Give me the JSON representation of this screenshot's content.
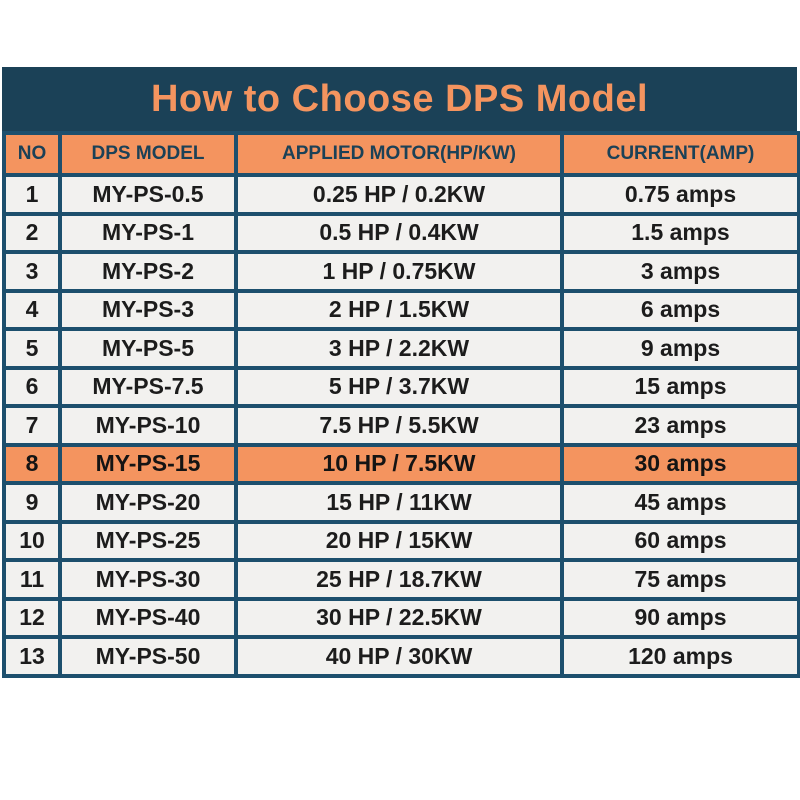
{
  "title": "How to Choose DPS Model",
  "chart_data": {
    "type": "table",
    "title": "How to Choose DPS Model",
    "columns": [
      "NO",
      "DPS MODEL",
      "APPLIED MOTOR(HP/KW)",
      "CURRENT(AMP)"
    ],
    "rows": [
      [
        "1",
        "MY-PS-0.5",
        "0.25 HP / 0.2KW",
        "0.75 amps"
      ],
      [
        "2",
        "MY-PS-1",
        "0.5 HP / 0.4KW",
        "1.5 amps"
      ],
      [
        "3",
        "MY-PS-2",
        "1 HP / 0.75KW",
        "3 amps"
      ],
      [
        "4",
        "MY-PS-3",
        "2 HP / 1.5KW",
        "6 amps"
      ],
      [
        "5",
        "MY-PS-5",
        "3 HP / 2.2KW",
        "9 amps"
      ],
      [
        "6",
        "MY-PS-7.5",
        "5 HP / 3.7KW",
        "15 amps"
      ],
      [
        "7",
        "MY-PS-10",
        "7.5 HP / 5.5KW",
        "23 amps"
      ],
      [
        "8",
        "MY-PS-15",
        "10 HP / 7.5KW",
        "30 amps"
      ],
      [
        "9",
        "MY-PS-20",
        "15 HP / 11KW",
        "45 amps"
      ],
      [
        "10",
        "MY-PS-25",
        "20 HP / 15KW",
        "60 amps"
      ],
      [
        "11",
        "MY-PS-30",
        "25 HP / 18.7KW",
        "75 amps"
      ],
      [
        "12",
        "MY-PS-40",
        "30 HP / 22.5KW",
        "90 amps"
      ],
      [
        "13",
        "MY-PS-50",
        "40 HP / 30KW",
        "120 amps"
      ]
    ],
    "highlighted_row_index": 7,
    "legend_position": "none",
    "grid": true
  },
  "colors": {
    "band_background": "#1b4157",
    "border": "#1d4f6d",
    "accent_orange": "#f4945f",
    "row_background": "#f2f1ef",
    "row_text": "#1c1c1c",
    "header_text": "#1b4157",
    "title_text": "#f4945f",
    "page_background": "#ffffff"
  }
}
